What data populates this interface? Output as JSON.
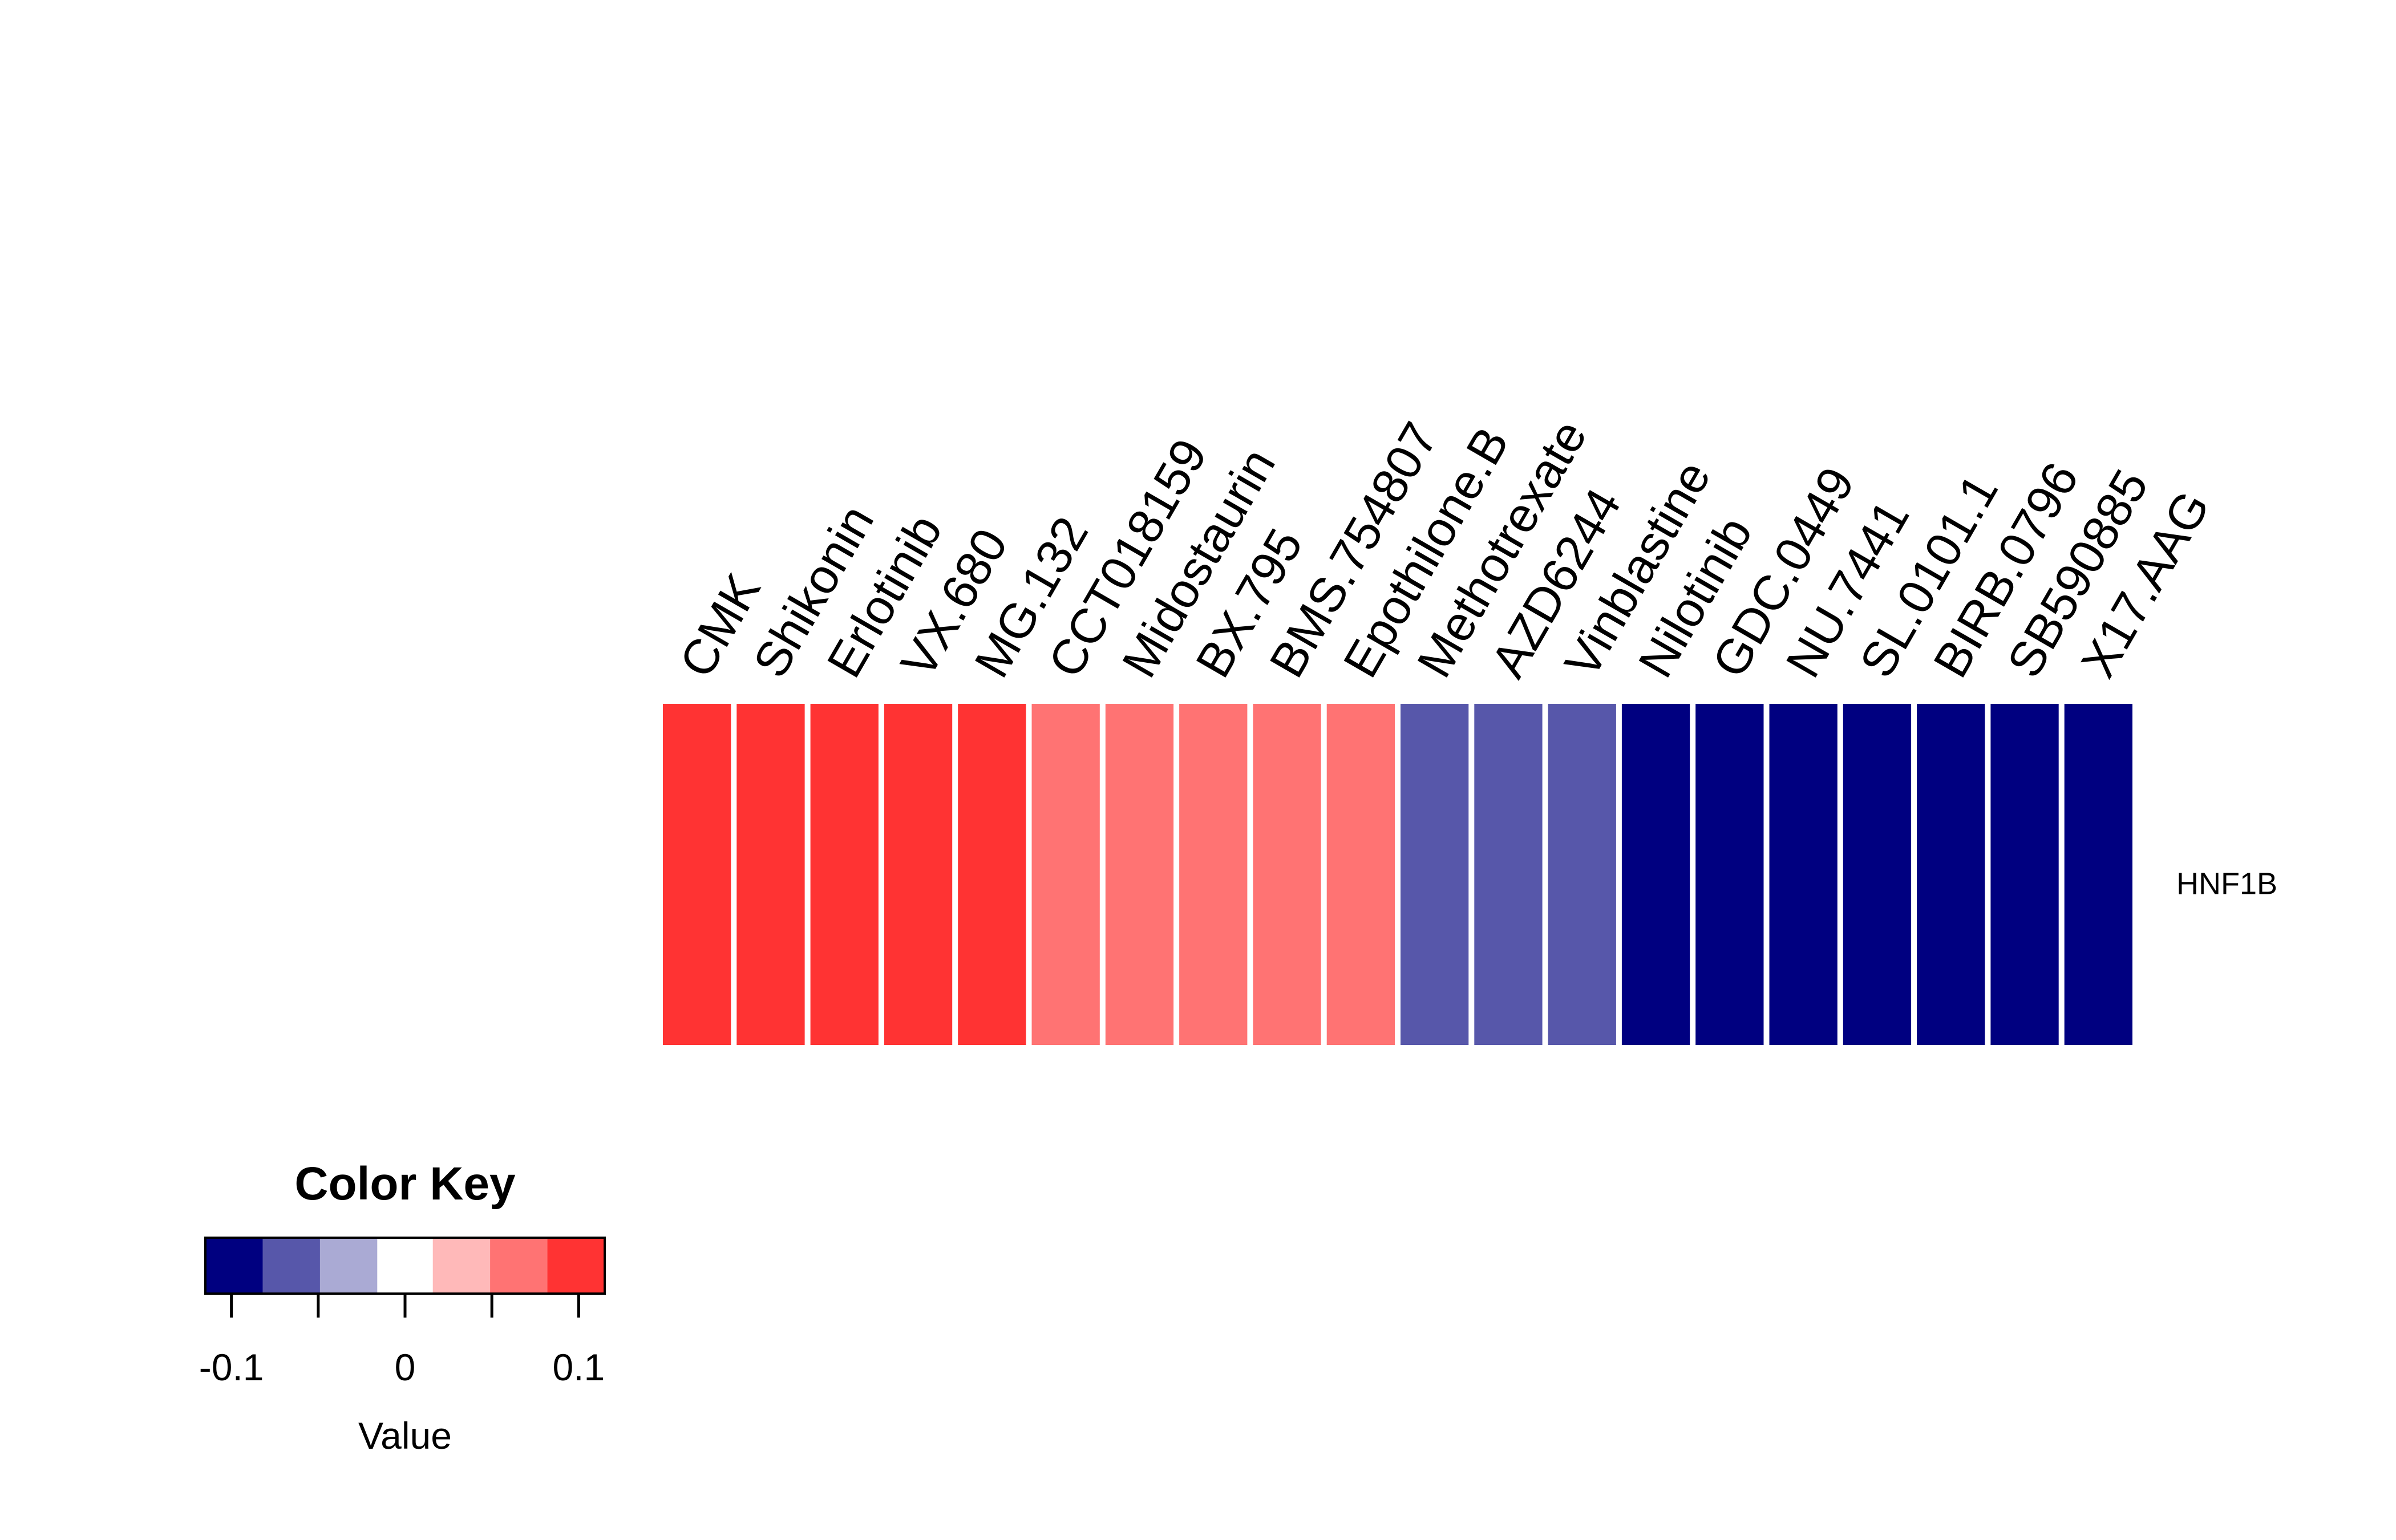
{
  "chart_data": {
    "type": "heatmap",
    "rows": [
      "HNF1B"
    ],
    "columns": [
      "CMK",
      "Shikonin",
      "Erlotinib",
      "VX.680",
      "MG.132",
      "CCT018159",
      "Midostaurin",
      "BX.795",
      "BMS.754807",
      "Epothilone.B",
      "Methotrexate",
      "AZD6244",
      "Vinblastine",
      "Nilotinib",
      "GDC.0449",
      "NU.7441",
      "SL.0101.1",
      "BIRB.0796",
      "SB590885",
      "X17.AAG"
    ],
    "values": [
      [
        0.1,
        0.1,
        0.1,
        0.1,
        0.1,
        0.07,
        0.07,
        0.07,
        0.07,
        0.07,
        -0.07,
        -0.07,
        -0.07,
        -0.1,
        -0.1,
        -0.1,
        -0.1,
        -0.1,
        -0.1,
        -0.1
      ]
    ],
    "color_key": {
      "title": "Color Key",
      "xlabel": "Value",
      "range": [
        -0.115,
        0.115
      ],
      "breaks": [
        -0.115,
        -0.082,
        -0.049,
        -0.016,
        0.016,
        0.049,
        0.082,
        0.115
      ],
      "colors": [
        "#000080",
        "#5757AA",
        "#AAAAD4",
        "#FFFFFF",
        "#FFB9B9",
        "#FF7373",
        "#FF3333"
      ],
      "ticks": [
        -0.1,
        -0.05,
        0,
        0.05,
        0.1
      ],
      "tick_labels": [
        "-0.1",
        "",
        "0",
        "",
        "0.1"
      ]
    }
  }
}
